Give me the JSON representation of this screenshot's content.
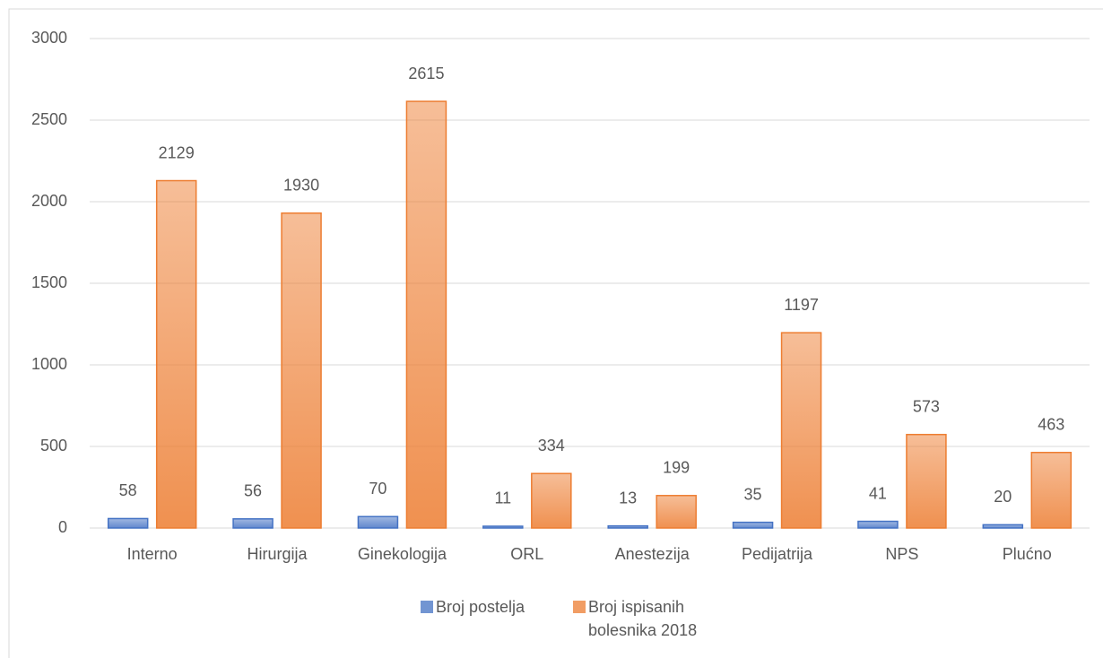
{
  "chart_data": {
    "type": "bar",
    "categories": [
      "Interno",
      "Hirurgija",
      "Ginekologija",
      "ORL",
      "Anestezija",
      "Pedijatrija",
      "NPS",
      "Plućno"
    ],
    "series": [
      {
        "name": "Broj postelja",
        "color": "#4472c4",
        "values": [
          58,
          56,
          70,
          11,
          13,
          35,
          41,
          20
        ]
      },
      {
        "name": "Broj ispisanih bolesnika 2018",
        "color": "#ed7d31",
        "values": [
          2129,
          1930,
          2615,
          334,
          199,
          1197,
          573,
          463
        ]
      }
    ],
    "ylim": [
      0,
      3000
    ],
    "yticks": [
      0,
      500,
      1000,
      1500,
      2000,
      2500,
      3000
    ],
    "grid": true,
    "legend": "bottom"
  }
}
